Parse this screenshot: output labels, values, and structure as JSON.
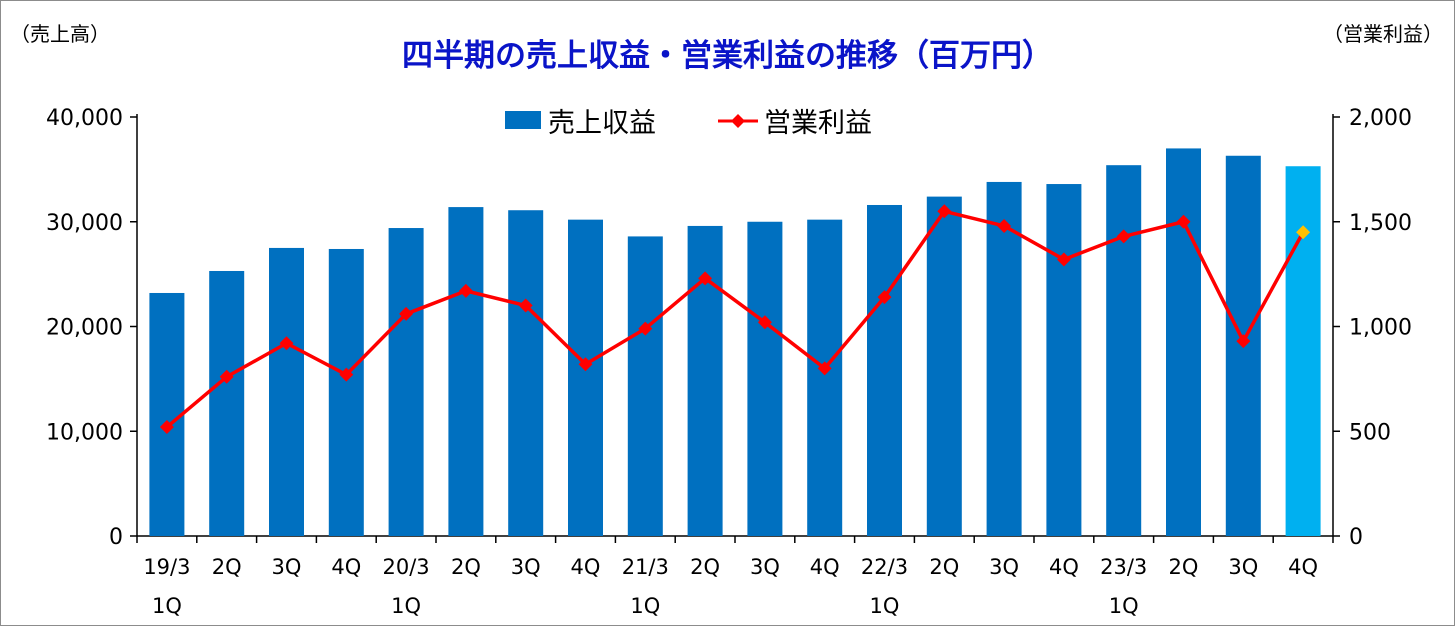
{
  "title": "四半期の売上収益・営業利益の推移（百万円）",
  "y_left_label": "（売上高）",
  "y_right_label": "（営業利益）",
  "colors": {
    "bar": "#0070c0",
    "bar_highlight": "#00b0f0",
    "line": "#ff0000",
    "point_highlight": "#ffc000",
    "title": "#0a14c8"
  },
  "chart_data": {
    "type": "bar",
    "categories": [
      {
        "line1": "19/3",
        "line2": "1Q"
      },
      {
        "line1": "2Q",
        "line2": ""
      },
      {
        "line1": "3Q",
        "line2": ""
      },
      {
        "line1": "4Q",
        "line2": ""
      },
      {
        "line1": "20/3",
        "line2": "1Q"
      },
      {
        "line1": "2Q",
        "line2": ""
      },
      {
        "line1": "3Q",
        "line2": ""
      },
      {
        "line1": "4Q",
        "line2": ""
      },
      {
        "line1": "21/3",
        "line2": "1Q"
      },
      {
        "line1": "2Q",
        "line2": ""
      },
      {
        "line1": "3Q",
        "line2": ""
      },
      {
        "line1": "4Q",
        "line2": ""
      },
      {
        "line1": "22/3",
        "line2": "1Q"
      },
      {
        "line1": "2Q",
        "line2": ""
      },
      {
        "line1": "3Q",
        "line2": ""
      },
      {
        "line1": "4Q",
        "line2": ""
      },
      {
        "line1": "23/3",
        "line2": "1Q"
      },
      {
        "line1": "2Q",
        "line2": ""
      },
      {
        "line1": "3Q",
        "line2": ""
      },
      {
        "line1": "4Q",
        "line2": ""
      }
    ],
    "series": [
      {
        "name": "売上収益",
        "kind": "bar",
        "axis": "left",
        "values": [
          23200,
          25300,
          27500,
          27400,
          29400,
          31400,
          31100,
          30200,
          28600,
          29600,
          30000,
          30200,
          31600,
          32400,
          33800,
          33600,
          35400,
          37000,
          36300,
          35300
        ]
      },
      {
        "name": "営業利益",
        "kind": "line",
        "axis": "right",
        "values": [
          520,
          760,
          920,
          770,
          1060,
          1170,
          1100,
          820,
          990,
          1230,
          1020,
          800,
          1140,
          1550,
          1480,
          1320,
          1430,
          1500,
          930,
          1450
        ]
      }
    ],
    "highlight_last": true,
    "y_left": {
      "min": 0,
      "max": 40000,
      "ticks": [
        "0",
        "10,000",
        "20,000",
        "30,000",
        "40,000"
      ]
    },
    "y_right": {
      "min": 0,
      "max": 2000,
      "ticks": [
        "0",
        "500",
        "1,000",
        "1,500",
        "2,000"
      ]
    },
    "grid": false,
    "legend_position": "top-center"
  }
}
